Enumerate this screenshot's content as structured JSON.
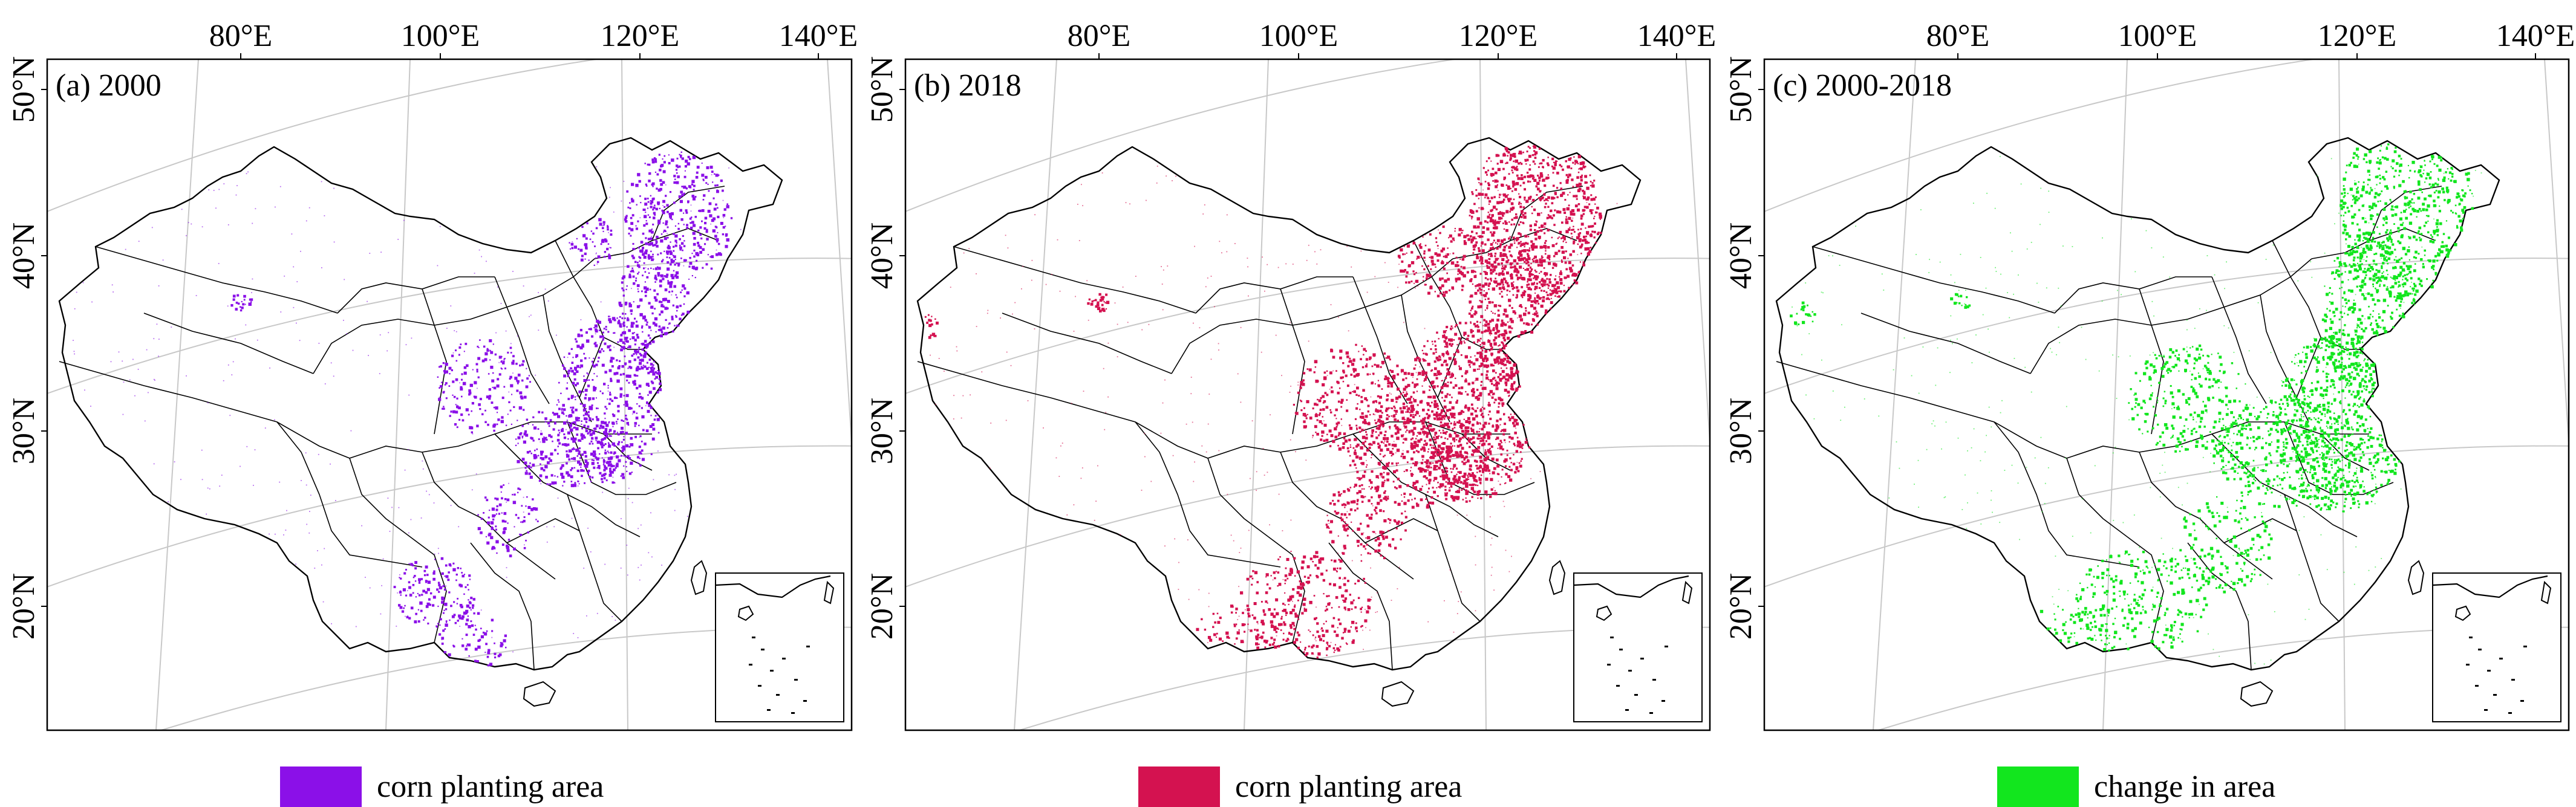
{
  "panels": [
    {
      "label": "(a) 2000",
      "legend_label": "corn planting area",
      "color": "#8B10E8",
      "lon_labels": [
        "80°E",
        "100°E",
        "120°E",
        "140°E"
      ],
      "lat_labels": [
        "50°N",
        "40°N",
        "30°N",
        "20°N"
      ]
    },
    {
      "label": "(b) 2018",
      "legend_label": "corn planting area",
      "color": "#D41250",
      "lon_labels": [
        "80°E",
        "100°E",
        "120°E",
        "140°E"
      ],
      "lat_labels": [
        "50°N",
        "40°N",
        "30°N",
        "20°N"
      ]
    },
    {
      "label": "(c) 2000-2018",
      "legend_label": "change in area",
      "color": "#12E61E",
      "lon_labels": [
        "80°E",
        "100°E",
        "120°E",
        "140°E"
      ],
      "lat_labels": [
        "50°N",
        "40°N",
        "30°N",
        "20°N"
      ]
    }
  ],
  "icons": {
    "map": "china-map-outline",
    "inset": "south-china-sea-inset"
  }
}
